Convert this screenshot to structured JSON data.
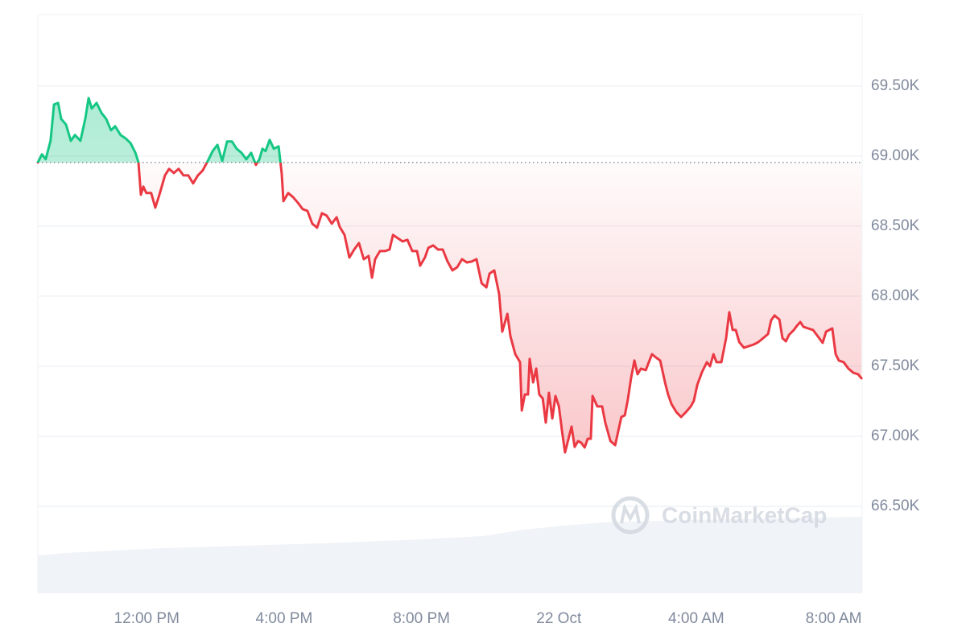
{
  "chart_data": {
    "type": "baseline-line",
    "watermark": "CoinMarketCap",
    "baseline": 68954,
    "color_up": "#16c784",
    "color_down": "#ea3943",
    "grid": true,
    "xlim": [
      8.83,
      32.83
    ],
    "xticks": [
      {
        "value": 12,
        "label": "12:00 PM"
      },
      {
        "value": 16,
        "label": "4:00 PM"
      },
      {
        "value": 20,
        "label": "8:00 PM"
      },
      {
        "value": 24,
        "label": "22 Oct"
      },
      {
        "value": 28,
        "label": "4:00 AM"
      },
      {
        "value": 32,
        "label": "8:00 AM"
      }
    ],
    "ylim": [
      65880,
      70010
    ],
    "yticks": [
      {
        "value": 66500,
        "label": "66.50K"
      },
      {
        "value": 67000,
        "label": "67.00K"
      },
      {
        "value": 67500,
        "label": "67.50K"
      },
      {
        "value": 68000,
        "label": "68.00K"
      },
      {
        "value": 68500,
        "label": "68.50K"
      },
      {
        "value": 69000,
        "label": "69.00K"
      },
      {
        "value": 69500,
        "label": "69.50K"
      }
    ],
    "x": [
      8.83,
      8.95,
      9.06,
      9.2,
      9.3,
      9.42,
      9.51,
      9.65,
      9.79,
      9.91,
      10.07,
      10.21,
      10.31,
      10.4,
      10.54,
      10.68,
      10.82,
      10.96,
      11.08,
      11.24,
      11.38,
      11.53,
      11.67,
      11.76,
      11.83,
      11.9,
      11.99,
      12.13,
      12.25,
      12.37,
      12.53,
      12.65,
      12.79,
      12.93,
      13.07,
      13.21,
      13.35,
      13.49,
      13.63,
      13.78,
      13.92,
      14.06,
      14.2,
      14.34,
      14.48,
      14.62,
      14.76,
      14.9,
      15.04,
      15.18,
      15.28,
      15.37,
      15.46,
      15.58,
      15.7,
      15.84,
      15.93,
      15.98,
      16.12,
      16.26,
      16.4,
      16.54,
      16.68,
      16.82,
      16.96,
      17.1,
      17.24,
      17.39,
      17.53,
      17.62,
      17.76,
      17.9,
      18.04,
      18.18,
      18.32,
      18.46,
      18.56,
      18.65,
      18.79,
      18.93,
      19.07,
      19.17,
      19.31,
      19.45,
      19.59,
      19.73,
      19.87,
      19.96,
      20.1,
      20.2,
      20.34,
      20.48,
      20.62,
      20.76,
      20.9,
      21.04,
      21.18,
      21.32,
      21.46,
      21.6,
      21.75,
      21.89,
      21.98,
      22.12,
      22.26,
      22.35,
      22.5,
      22.59,
      22.73,
      22.87,
      22.92,
      23.01,
      23.1,
      23.15,
      23.25,
      23.34,
      23.43,
      23.53,
      23.62,
      23.71,
      23.81,
      23.9,
      24.0,
      24.09,
      24.18,
      24.28,
      24.37,
      24.46,
      24.56,
      24.65,
      24.75,
      24.84,
      24.93,
      24.98,
      25.12,
      25.26,
      25.35,
      25.5,
      25.64,
      25.73,
      25.82,
      25.92,
      26.01,
      26.1,
      26.2,
      26.29,
      26.39,
      26.53,
      26.62,
      26.71,
      26.85,
      26.95,
      27.09,
      27.18,
      27.28,
      27.42,
      27.56,
      27.7,
      27.84,
      27.93,
      28.03,
      28.17,
      28.31,
      28.4,
      28.5,
      28.59,
      28.73,
      28.87,
      28.96,
      29.06,
      29.15,
      29.25,
      29.39,
      29.53,
      29.67,
      29.81,
      29.95,
      30.09,
      30.18,
      30.28,
      30.42,
      30.51,
      30.61,
      30.7,
      30.84,
      30.93,
      31.03,
      31.12,
      31.26,
      31.4,
      31.54,
      31.68,
      31.78,
      31.87,
      31.96,
      32.06,
      32.15,
      32.29,
      32.43,
      32.57,
      32.71,
      32.81
    ],
    "values": [
      68954,
      69012,
      68977,
      69109,
      69368,
      69379,
      69265,
      69224,
      69109,
      69150,
      69109,
      69265,
      69414,
      69339,
      69379,
      69309,
      69265,
      69184,
      69213,
      69150,
      69127,
      69092,
      69023,
      68954,
      68724,
      68782,
      68736,
      68736,
      68632,
      68724,
      68862,
      68908,
      68879,
      68908,
      68862,
      68862,
      68805,
      68862,
      68897,
      68966,
      69035,
      69080,
      68966,
      69104,
      69104,
      69052,
      69023,
      68977,
      69023,
      68937,
      68977,
      69052,
      69035,
      69115,
      69052,
      69069,
      68879,
      68678,
      68736,
      68707,
      68667,
      68621,
      68609,
      68517,
      68489,
      68592,
      68575,
      68517,
      68563,
      68494,
      68437,
      68276,
      68333,
      68379,
      68264,
      68287,
      68132,
      68264,
      68322,
      68322,
      68333,
      68437,
      68414,
      68391,
      68402,
      68322,
      68322,
      68218,
      68276,
      68345,
      68362,
      68333,
      68333,
      68247,
      68184,
      68207,
      68264,
      68241,
      68247,
      68264,
      68092,
      68063,
      68161,
      68184,
      68017,
      67747,
      67874,
      67713,
      67586,
      67529,
      67184,
      67299,
      67299,
      67552,
      67385,
      67483,
      67299,
      67270,
      67098,
      67310,
      67127,
      67288,
      67213,
      67040,
      66885,
      66983,
      67069,
      66925,
      66966,
      66954,
      66920,
      66983,
      66983,
      67288,
      67213,
      67213,
      67098,
      66966,
      66937,
      67040,
      67138,
      67150,
      67265,
      67414,
      67541,
      67443,
      67483,
      67472,
      67529,
      67586,
      67558,
      67541,
      67385,
      67299,
      67230,
      67173,
      67138,
      67173,
      67213,
      67253,
      67368,
      67460,
      67529,
      67500,
      67586,
      67529,
      67529,
      67701,
      67885,
      67759,
      67759,
      67673,
      67632,
      67644,
      67655,
      67673,
      67701,
      67730,
      67828,
      67862,
      67833,
      67701,
      67678,
      67724,
      67759,
      67788,
      67816,
      67782,
      67770,
      67759,
      67713,
      67667,
      67747,
      67759,
      67770,
      67586,
      67541,
      67529,
      67483,
      67454,
      67443,
      67414
    ]
  }
}
